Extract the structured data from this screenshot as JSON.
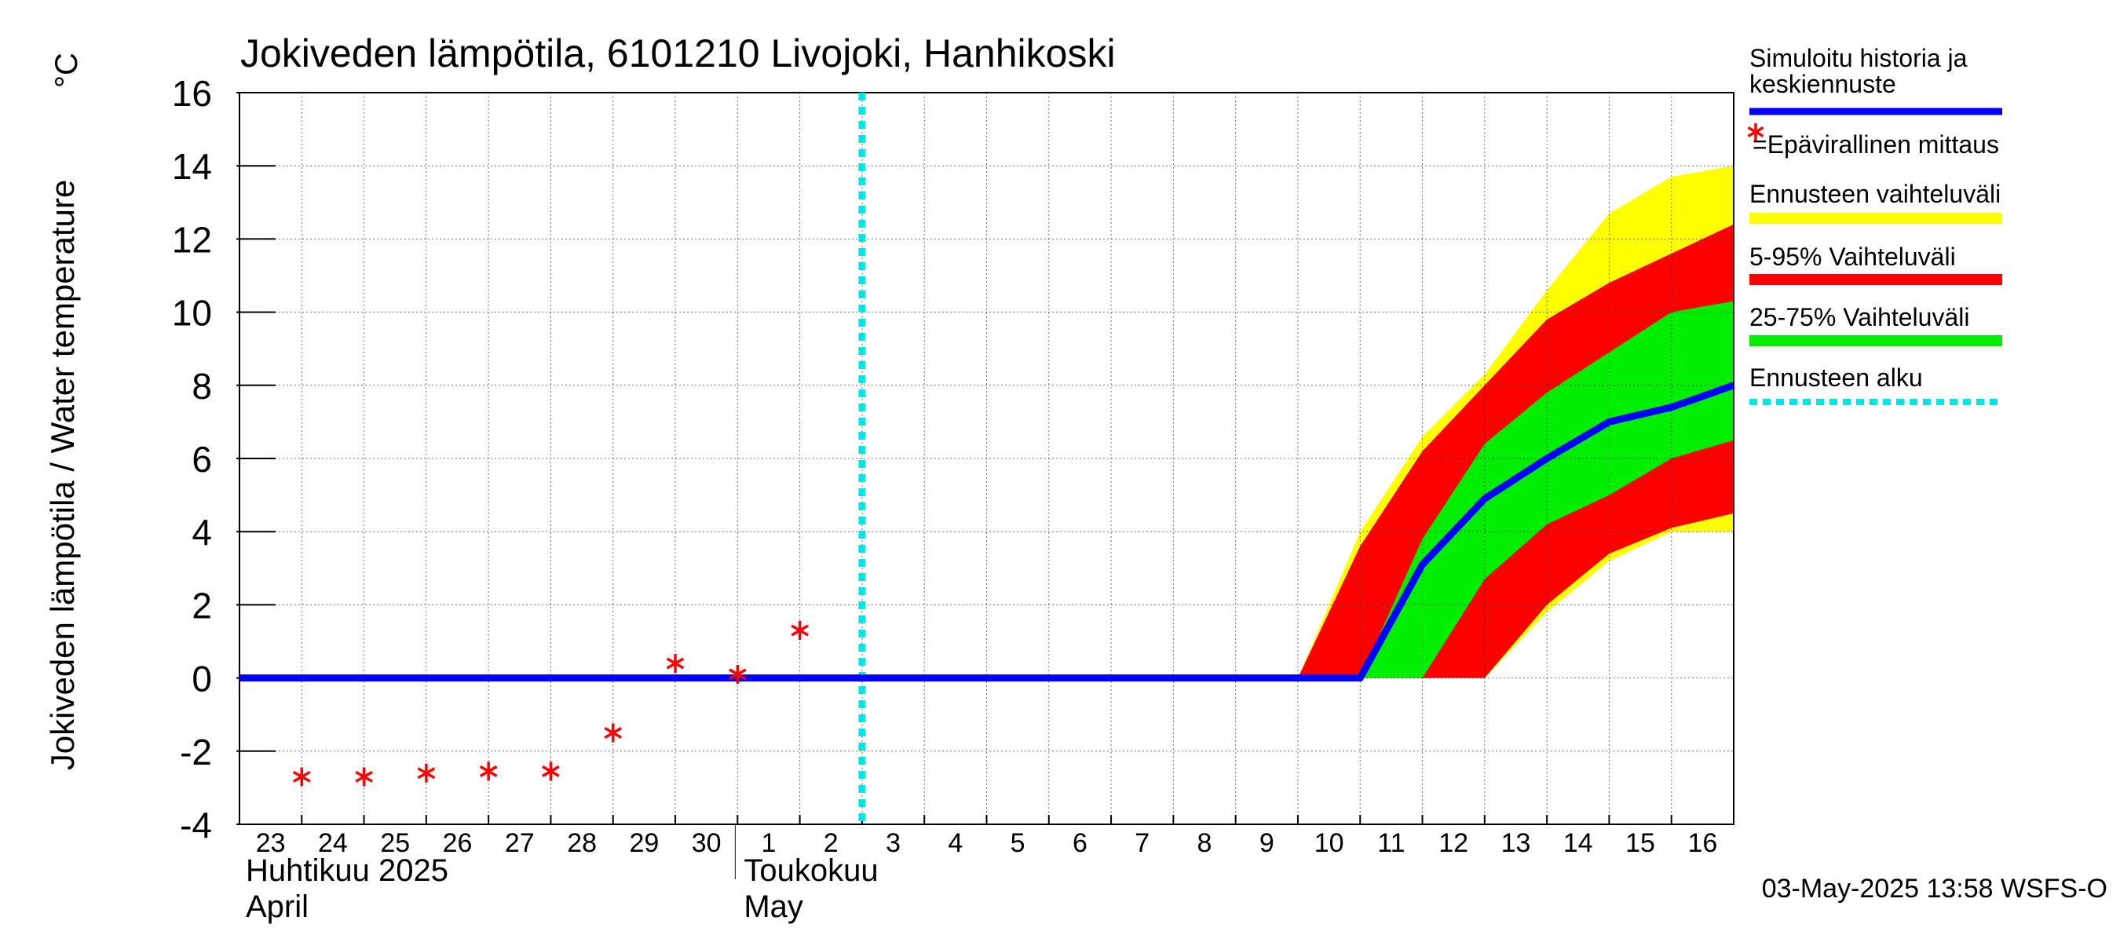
{
  "chart_data": {
    "type": "line",
    "title": "Jokiveden lämpötila, 6101210 Livojoki, Hanhikoski",
    "ylabel": "Jokiveden lämpötila / Water temperature",
    "yunit": "°C",
    "ylim": [
      -4,
      16
    ],
    "yticks": [
      -4,
      -2,
      0,
      2,
      4,
      6,
      8,
      10,
      12,
      14,
      16
    ],
    "grid": true,
    "legend_position": "right",
    "x_range": [
      "2025-04-23",
      "2025-05-17"
    ],
    "x_day_labels": [
      {
        "date": "2025-04-23",
        "label": "23"
      },
      {
        "date": "2025-04-24",
        "label": "24"
      },
      {
        "date": "2025-04-25",
        "label": "25"
      },
      {
        "date": "2025-04-26",
        "label": "26"
      },
      {
        "date": "2025-04-27",
        "label": "27"
      },
      {
        "date": "2025-04-28",
        "label": "28"
      },
      {
        "date": "2025-04-29",
        "label": "29"
      },
      {
        "date": "2025-04-30",
        "label": "30"
      },
      {
        "date": "2025-05-01",
        "label": "1"
      },
      {
        "date": "2025-05-02",
        "label": "2"
      },
      {
        "date": "2025-05-03",
        "label": "3"
      },
      {
        "date": "2025-05-04",
        "label": "4"
      },
      {
        "date": "2025-05-05",
        "label": "5"
      },
      {
        "date": "2025-05-06",
        "label": "6"
      },
      {
        "date": "2025-05-07",
        "label": "7"
      },
      {
        "date": "2025-05-08",
        "label": "8"
      },
      {
        "date": "2025-05-09",
        "label": "9"
      },
      {
        "date": "2025-05-10",
        "label": "10"
      },
      {
        "date": "2025-05-11",
        "label": "11"
      },
      {
        "date": "2025-05-12",
        "label": "12"
      },
      {
        "date": "2025-05-13",
        "label": "13"
      },
      {
        "date": "2025-05-14",
        "label": "14"
      },
      {
        "date": "2025-05-15",
        "label": "15"
      },
      {
        "date": "2025-05-16",
        "label": "16"
      }
    ],
    "month_labels": [
      {
        "date": "2025-04-23",
        "fi": "Huhtikuu  2025",
        "en": "April"
      },
      {
        "date": "2025-05-01",
        "fi": "Toukokuu",
        "en": "May"
      }
    ],
    "forecast_start": "2025-05-03",
    "series": [
      {
        "name": "Simuloitu historia ja keskiennuste",
        "color": "#0000ff",
        "points": [
          {
            "x": "2025-04-23",
            "y": 0
          },
          {
            "x": "2025-05-11",
            "y": 0
          },
          {
            "x": "2025-05-12",
            "y": 3.1
          },
          {
            "x": "2025-05-13",
            "y": 4.9
          },
          {
            "x": "2025-05-14",
            "y": 6.0
          },
          {
            "x": "2025-05-15",
            "y": 7.0
          },
          {
            "x": "2025-05-16",
            "y": 7.4
          },
          {
            "x": "2025-05-17",
            "y": 8.0
          }
        ]
      },
      {
        "name": "=Epävirallinen mittaus",
        "color": "#ff0000",
        "marker": "asterisk",
        "points": [
          {
            "x": "2025-04-24",
            "y": -2.7
          },
          {
            "x": "2025-04-25",
            "y": -2.7
          },
          {
            "x": "2025-04-26",
            "y": -2.6
          },
          {
            "x": "2025-04-27",
            "y": -2.55
          },
          {
            "x": "2025-04-28",
            "y": -2.55
          },
          {
            "x": "2025-04-29",
            "y": -1.5
          },
          {
            "x": "2025-04-30",
            "y": 0.4
          },
          {
            "x": "2025-05-01",
            "y": 0.1
          },
          {
            "x": "2025-05-02",
            "y": 1.3
          }
        ]
      }
    ],
    "bands": [
      {
        "name": "Ennusteen vaihteluväli",
        "color": "#ffff00",
        "x": [
          "2025-05-10",
          "2025-05-11",
          "2025-05-12",
          "2025-05-13",
          "2025-05-14",
          "2025-05-15",
          "2025-05-16",
          "2025-05-17"
        ],
        "upper": [
          0,
          4.0,
          6.6,
          8.3,
          10.6,
          12.7,
          13.7,
          14.0
        ],
        "lower": [
          0,
          0,
          0,
          0,
          1.8,
          3.2,
          4.0,
          4.0
        ]
      },
      {
        "name": "5-95% Vaihteluväli",
        "color": "#ff0000",
        "x": [
          "2025-05-10",
          "2025-05-11",
          "2025-05-12",
          "2025-05-13",
          "2025-05-14",
          "2025-05-15",
          "2025-05-16",
          "2025-05-17"
        ],
        "upper": [
          0,
          3.6,
          6.2,
          8.0,
          9.8,
          10.8,
          11.6,
          12.4
        ],
        "lower": [
          0,
          0,
          0,
          0,
          2.0,
          3.4,
          4.1,
          4.5
        ]
      },
      {
        "name": "25-75% Vaihteluväli",
        "color": "#00ee00",
        "x": [
          "2025-05-11",
          "2025-05-12",
          "2025-05-13",
          "2025-05-14",
          "2025-05-15",
          "2025-05-16",
          "2025-05-17"
        ],
        "upper": [
          0,
          3.8,
          6.4,
          7.8,
          8.9,
          10.0,
          10.3
        ],
        "lower": [
          0,
          0,
          2.7,
          4.2,
          5.0,
          6.0,
          6.5
        ]
      }
    ],
    "legend": [
      {
        "label_lines": [
          "Simuloitu historia ja",
          "keskiennuste"
        ],
        "color": "#0000ff",
        "kind": "line"
      },
      {
        "label_lines": [
          "=Epävirallinen mittaus"
        ],
        "color": "#ff0000",
        "kind": "marker"
      },
      {
        "label_lines": [
          "Ennusteen vaihteluväli"
        ],
        "color": "#ffff00",
        "kind": "bar"
      },
      {
        "label_lines": [
          "5-95% Vaihteluväli"
        ],
        "color": "#ff0000",
        "kind": "bar"
      },
      {
        "label_lines": [
          "25-75% Vaihteluväli"
        ],
        "color": "#00ee00",
        "kind": "bar"
      },
      {
        "label_lines": [
          "Ennusteen alku"
        ],
        "color": "#00e5e5",
        "kind": "dashed"
      }
    ],
    "footer": "03-May-2025 13:58 WSFS-O"
  }
}
